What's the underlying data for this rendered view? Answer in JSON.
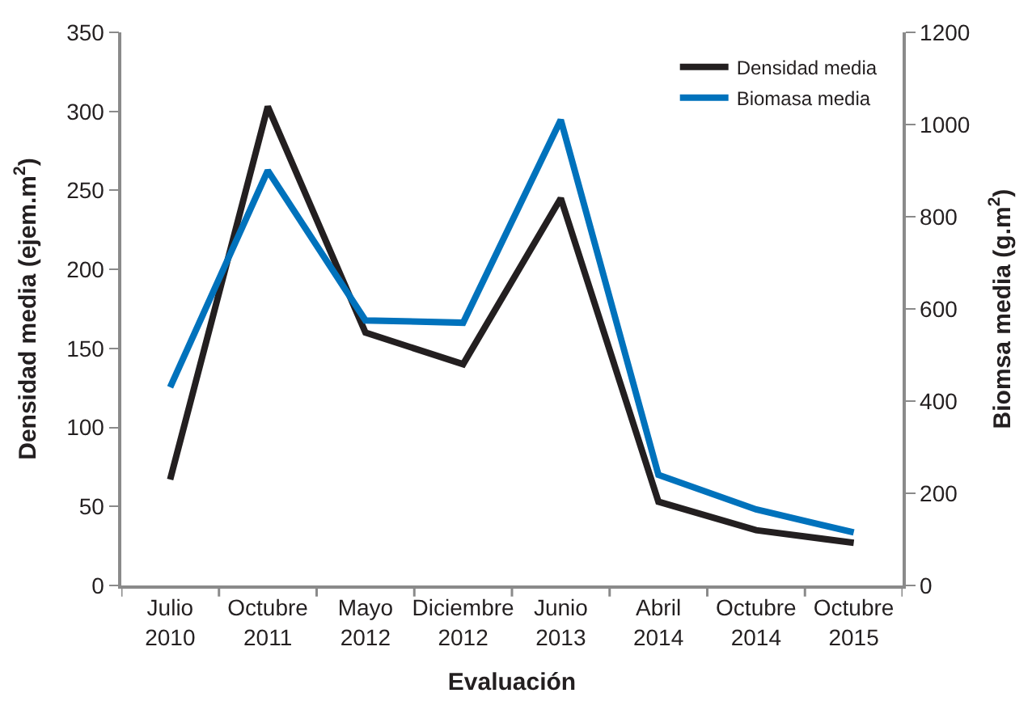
{
  "chart_data": {
    "type": "line",
    "categories": [
      "Julio\n2010",
      "Octubre\n2011",
      "Mayo\n2012",
      "Diciembre\n2012",
      "Junio\n2013",
      "Abril\n2014",
      "Octubre\n2014",
      "Octubre\n2015"
    ],
    "series": [
      {
        "name": "Densidad media",
        "color": "#231f20",
        "values": [
          67,
          303,
          160,
          140,
          245,
          53,
          35,
          27
        ]
      },
      {
        "name": "Biomasa media",
        "color": "#0072bc",
        "axis": "y2",
        "values": [
          430,
          900,
          575,
          570,
          1010,
          240,
          165,
          115
        ]
      }
    ],
    "xlabel": "Evaluación",
    "ylabel": "Densidad media (ejem.m$^{2}$)",
    "y2label": "Biomsa media (g.m$^{2}$)",
    "ylim": [
      0,
      350
    ],
    "yticks": [
      0,
      50,
      100,
      150,
      200,
      250,
      300,
      350
    ],
    "y2lim": [
      0,
      1200
    ],
    "y2ticks": [
      0,
      200,
      400,
      600,
      800,
      1000,
      1200
    ],
    "legend": "top right",
    "marker": "none",
    "line_style": "solid"
  }
}
